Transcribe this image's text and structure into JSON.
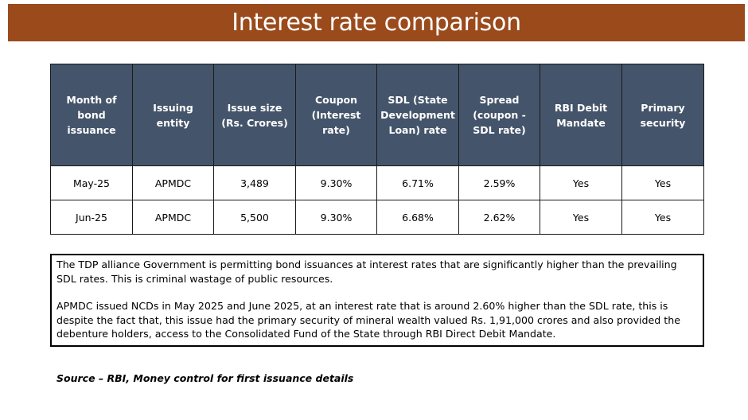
{
  "title": "Interest rate comparison",
  "table": {
    "headers": [
      "Month of bond issuance",
      "Issuing entity",
      "Issue size (Rs. Crores)",
      "Coupon (Interest rate)",
      "SDL (State Development Loan) rate",
      "Spread (coupon - SDL rate)",
      "RBI Debit Mandate",
      "Primary security"
    ],
    "rows": [
      [
        "May-25",
        "APMDC",
        "3,489",
        "9.30%",
        "6.71%",
        "2.59%",
        "Yes",
        "Yes"
      ],
      [
        "Jun-25",
        "APMDC",
        "5,500",
        "9.30%",
        "6.68%",
        "2.62%",
        "Yes",
        "Yes"
      ]
    ]
  },
  "note": {
    "paragraph1": "The TDP alliance Government is permitting bond issuances at interest rates that are significantly higher than the prevailing SDL rates. This is criminal wastage of public resources.",
    "paragraph2": "APMDC issued NCDs in May 2025 and June 2025, at an interest rate that is around 2.60% higher than the SDL rate, this is despite the fact that, this issue had the primary security of mineral wealth valued Rs. 1,91,000 crores and also provided the debenture holders, access to the Consolidated Fund of the State through RBI Direct Debit Mandate."
  },
  "source": "Source – RBI, Money control for first issuance details",
  "colors": {
    "title_bar": "#9a4a1b",
    "header_fill": "#44546a"
  }
}
